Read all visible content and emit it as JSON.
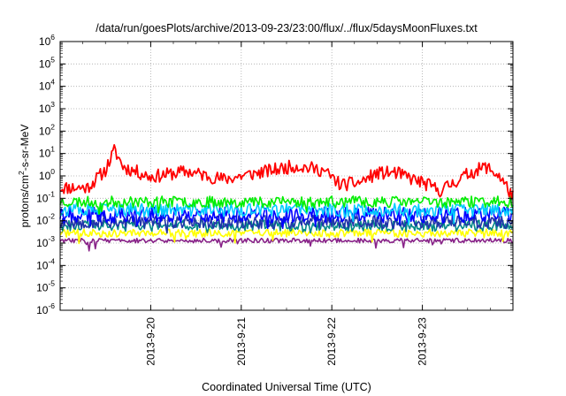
{
  "chart_data": {
    "type": "line",
    "title": "/data/run/goesPlots/archive/2013-09-23/23:00/flux/../flux/5daysMoonFluxes.txt",
    "xlabel": "Coordinated Universal Time (UTC)",
    "ylabel": "protons/cm²-s-sr-MeV",
    "yscale": "log",
    "ylim_exponents": [
      -6,
      6
    ],
    "y_ticks": [
      "10-6",
      "10-5",
      "10-4",
      "10-3",
      "10-2",
      "10-1",
      "100",
      "101",
      "102",
      "103",
      "104",
      "105",
      "106"
    ],
    "x_domain_days": [
      "2013-09-19 00:00",
      "2013-09-24 00:00"
    ],
    "x_ticks": [
      {
        "label": "2013-9-20",
        "date": "2013-09-20"
      },
      {
        "label": "2013-9-21",
        "date": "2013-09-21"
      },
      {
        "label": "2013-9-22",
        "date": "2013-09-22"
      },
      {
        "label": "2013-9-23",
        "date": "2013-09-23"
      }
    ],
    "grid": true,
    "series": [
      {
        "color": "#ff0000",
        "base": 0.8,
        "amp": 0.3,
        "seed": 11,
        "features": [
          [
            0.0,
            0.3
          ],
          [
            0.06,
            0.3
          ],
          [
            0.1,
            1.8
          ],
          [
            0.12,
            14
          ],
          [
            0.14,
            2.5
          ],
          [
            0.2,
            0.9
          ],
          [
            0.28,
            1.6
          ],
          [
            0.36,
            0.7
          ],
          [
            0.44,
            1.4
          ],
          [
            0.52,
            2.8
          ],
          [
            0.58,
            1.8
          ],
          [
            0.62,
            0.4
          ],
          [
            0.66,
            0.5
          ],
          [
            0.7,
            1.3
          ],
          [
            0.74,
            1.4
          ],
          [
            0.8,
            0.5
          ],
          [
            0.84,
            0.22
          ],
          [
            0.9,
            1.2
          ],
          [
            0.94,
            2.6
          ],
          [
            0.97,
            1.0
          ],
          [
            1.0,
            0.12
          ]
        ]
      },
      {
        "color": "#00ee00",
        "base": 0.07,
        "amp": 0.25,
        "seed": 23,
        "features": []
      },
      {
        "color": "#00ccff",
        "base": 0.03,
        "amp": 0.3,
        "seed": 37,
        "features": []
      },
      {
        "color": "#0000ff",
        "base": 0.018,
        "amp": 0.35,
        "seed": 41,
        "features": []
      },
      {
        "color": "#2233aa",
        "base": 0.009,
        "amp": 0.3,
        "seed": 53,
        "features": []
      },
      {
        "color": "#008888",
        "base": 0.006,
        "amp": 0.25,
        "seed": 61,
        "features": []
      },
      {
        "color": "#ffff00",
        "base": 0.0028,
        "amp": 0.18,
        "seed": 71,
        "features": []
      },
      {
        "color": "#882288",
        "base": 0.0013,
        "amp": 0.1,
        "seed": 83,
        "features": []
      }
    ]
  }
}
